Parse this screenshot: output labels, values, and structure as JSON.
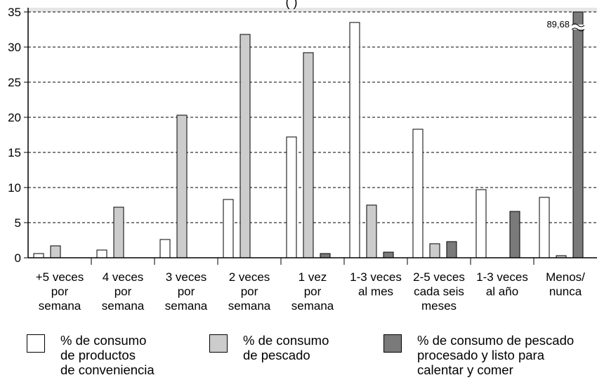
{
  "chart_data": {
    "type": "bar",
    "title_fragment": "(          )",
    "categories": [
      "+5 veces\npor\nsemana",
      "4 veces\npor\nsemana",
      "3 veces\npor\nsemana",
      "2 veces\npor\nsemana",
      "1 vez\npor\nsemana",
      "1-3 veces\nal mes",
      "2-5 veces\ncada seis\nmeses",
      "1-3 veces\nal año",
      "Menos/\nnunca"
    ],
    "series": [
      {
        "name": "% de consumo\nde productos\nde conveniencia",
        "color": "#ffffff",
        "values": [
          0.6,
          1.1,
          2.6,
          8.3,
          17.2,
          33.5,
          18.3,
          9.7,
          8.6
        ]
      },
      {
        "name": "% de consumo\nde pescado",
        "color": "#cccccc",
        "values": [
          1.7,
          7.2,
          20.3,
          31.8,
          29.2,
          7.5,
          2.0,
          0,
          0.3
        ]
      },
      {
        "name": "% de consumo de pescado\nprocesado y listo para\ncalentar y comer",
        "color": "#7a7a7a",
        "values": [
          0,
          0,
          0,
          0,
          0.6,
          0.8,
          2.3,
          6.6,
          89.68
        ]
      }
    ],
    "ylim": [
      0,
      35
    ],
    "yticks": [
      0,
      5,
      10,
      15,
      20,
      25,
      30,
      35
    ],
    "grid": true,
    "legend_position": "bottom",
    "annotation": "89,68",
    "axis_break": "Menos/nunca bar exceeds axis maximum"
  }
}
